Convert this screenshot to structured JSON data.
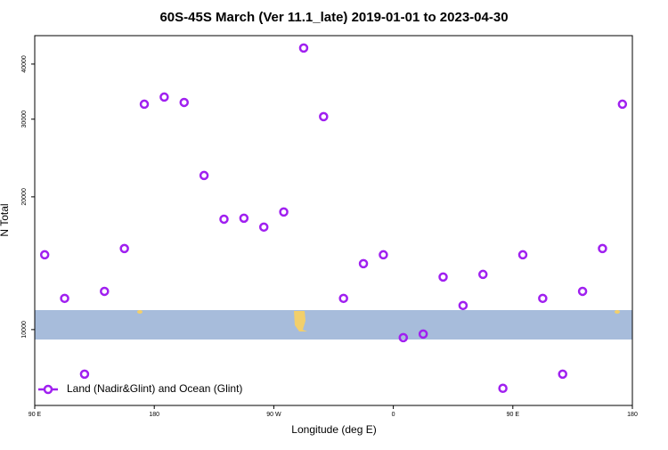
{
  "chart_data": {
    "type": "scatter",
    "title": "60S-45S March (Ver 11.1_late)   2019-01-01 to 2023-04-30",
    "x_label": "Longitude (deg E)",
    "y_label": "N Total",
    "log_y": true,
    "legend_position": "bottom-left",
    "xlim": [
      90,
      540
    ],
    "xticks": [
      {
        "value": 90,
        "label": "90 E"
      },
      {
        "value": 180,
        "label": "180"
      },
      {
        "value": 270,
        "label": "90 W"
      },
      {
        "value": 360,
        "label": "0"
      },
      {
        "value": 450,
        "label": "90 E"
      },
      {
        "value": 540,
        "label": "180"
      }
    ],
    "ylim": [
      6730,
      46400
    ],
    "yticks": [
      10000,
      20000,
      30000,
      40000
    ],
    "series": [
      {
        "name": "Land (Nadir&Glint) and Ocean (Glint)",
        "color": "#a020f0",
        "x": [
          97.5,
          112.5,
          127.5,
          142.5,
          157.5,
          172.5,
          187.5,
          202.5,
          217.5,
          232.5,
          247.5,
          262.5,
          277.5,
          292.5,
          307.5,
          322.5,
          337.5,
          352.5,
          367.5,
          382.5,
          397.5,
          412.5,
          427.5,
          442.5,
          457.5,
          472.5,
          487.5,
          502.5,
          517.5,
          532.5
        ],
        "values": [
          14780,
          11770,
          7925,
          12210,
          15270,
          32440,
          33670,
          32740,
          22360,
          17800,
          17890,
          17080,
          18480,
          43500,
          30400,
          11770,
          14110,
          14780,
          9590,
          9770,
          13160,
          11340,
          13340,
          7360,
          14780,
          11770,
          7925,
          12210,
          15270,
          32440
        ]
      }
    ]
  }
}
